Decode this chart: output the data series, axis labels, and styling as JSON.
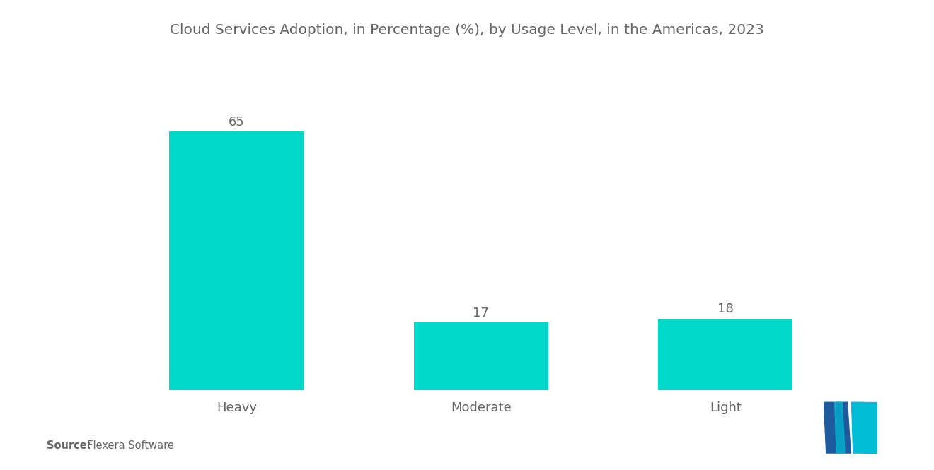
{
  "title": "Cloud Services Adoption, in Percentage (%), by Usage Level, in the Americas, 2023",
  "categories": [
    "Heavy",
    "Moderate",
    "Light"
  ],
  "values": [
    65,
    17,
    18
  ],
  "bar_color": "#00D8CC",
  "background_color": "#ffffff",
  "title_fontsize": 14.5,
  "label_fontsize": 13,
  "value_fontsize": 13,
  "source_bold": "Source:",
  "source_rest": "  Flexera Software",
  "ylim": [
    0,
    78
  ],
  "bar_width": 0.55,
  "logo_blue": "#1e5b9e",
  "logo_teal": "#00bcd4"
}
